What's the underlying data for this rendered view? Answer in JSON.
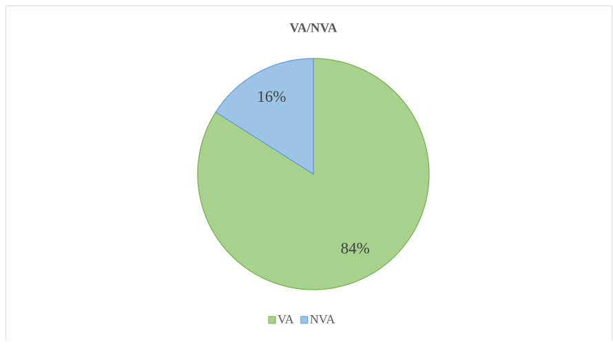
{
  "chart_data": {
    "type": "pie",
    "title": "VA/NVA",
    "categories": [
      "VA",
      "NVA"
    ],
    "values": [
      84,
      16
    ],
    "value_labels": [
      "84%",
      "16%"
    ],
    "colors": [
      "#a9d18e",
      "#9dc3e6"
    ],
    "edge_colors": [
      "#70ad47",
      "#5b9bd5"
    ],
    "legend": "bottom"
  }
}
